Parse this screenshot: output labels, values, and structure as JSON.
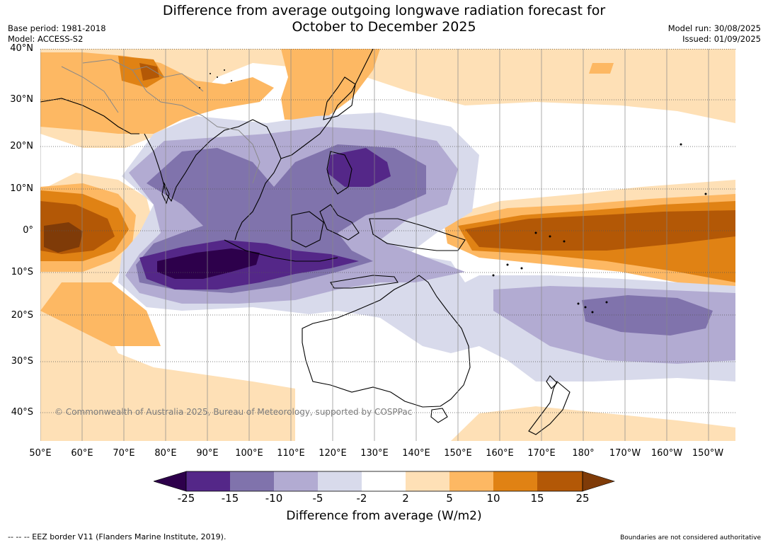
{
  "title": {
    "line1": "Difference from average outgoing longwave radiation forecast for",
    "line2": "October to December 2025"
  },
  "meta": {
    "base_period": "Base period: 1981-2018",
    "model": "Model: ACCESS-S2",
    "model_run": "Model run: 30/08/2025",
    "issued": "Issued: 01/09/2025"
  },
  "copyright": "© Commonwealth of Australia 2025, Bureau of Meteorology, supported by COSPPac",
  "latitude_labels": [
    "40°N",
    "30°N",
    "20°N",
    "10°N",
    "0°",
    "10°S",
    "20°S",
    "30°S",
    "40°S"
  ],
  "longitude_labels": [
    "50°E",
    "60°E",
    "70°E",
    "80°E",
    "90°E",
    "100°E",
    "110°E",
    "120°E",
    "130°E",
    "140°E",
    "150°E",
    "160°E",
    "170°E",
    "180°",
    "170°W",
    "160°W",
    "150°W"
  ],
  "colorbar": {
    "ticks": [
      "-25",
      "-15",
      "-10",
      "-5",
      "-2",
      "2",
      "5",
      "10",
      "15",
      "25"
    ],
    "colors": {
      "below_-25": "#2d004b",
      "-25_-15": "#542788",
      "-15_-10": "#8073ac",
      "-10_-5": "#b2abd2",
      "-5_-2": "#d8daeb",
      "-2_2": "#ffffff",
      "2_5": "#fee0b6",
      "5_10": "#fdb863",
      "10_15": "#e08214",
      "15_25": "#b35806",
      "above_25": "#7f3b08"
    },
    "label": "Difference from average (W/m2)"
  },
  "footer": {
    "eez_note": "--  --  -- EEZ border V11 (Flanders Marine Institute, 2019).",
    "boundaries_note": "Boundaries are not considered authoritative"
  }
}
